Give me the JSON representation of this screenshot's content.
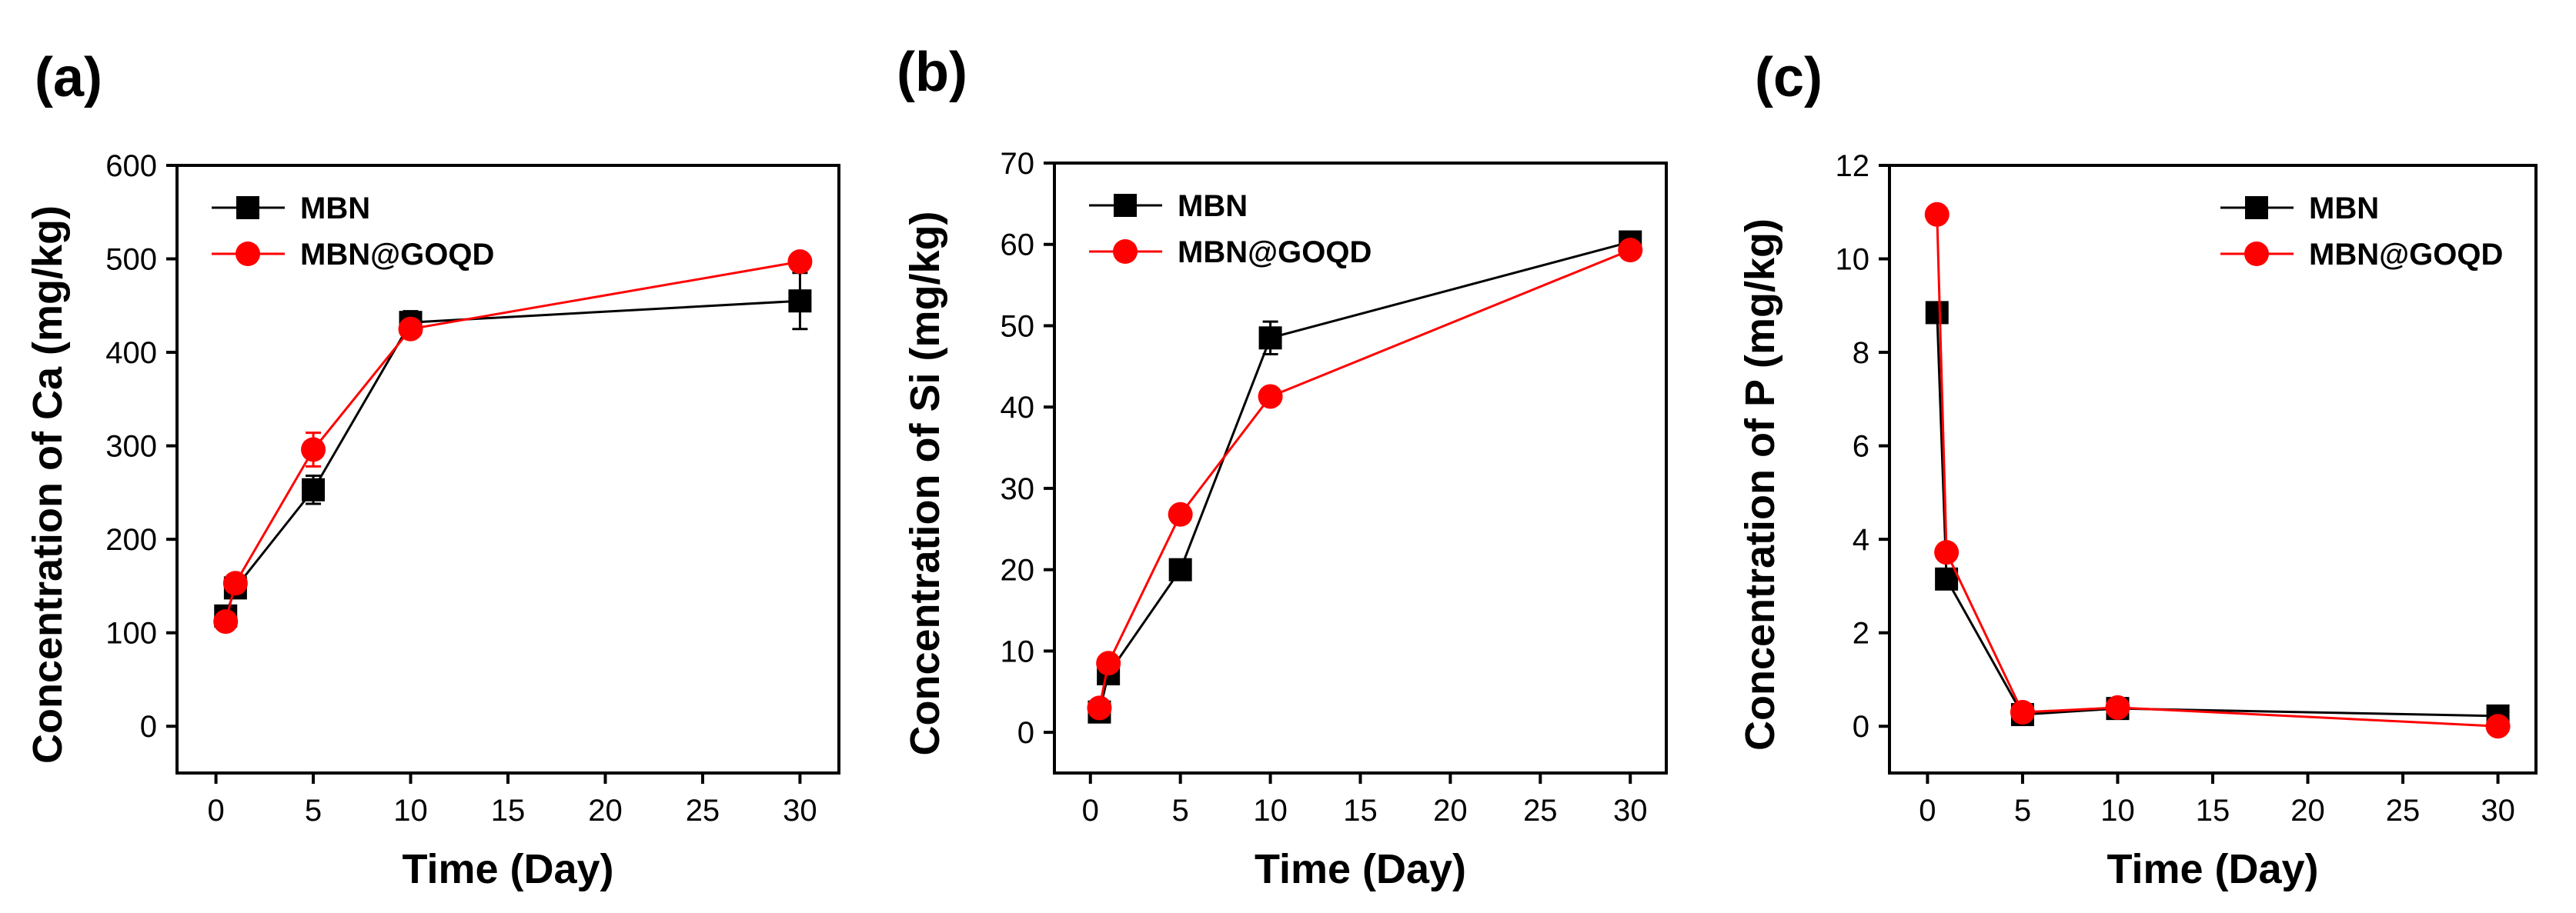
{
  "figure": {
    "colors": {
      "MBN": "#000000",
      "MBN@GOQD": "#ff0000"
    }
  },
  "chart_data": [
    {
      "type": "line",
      "panel": "(a)",
      "xlabel": "Time (Day)",
      "ylabel": "Concentration of Ca (mg/kg)",
      "xlim": [
        -2,
        32
      ],
      "ylim": [
        -50,
        600
      ],
      "xticks": [
        0,
        5,
        10,
        15,
        20,
        25,
        30
      ],
      "yticks": [
        0,
        100,
        200,
        300,
        400,
        500,
        600
      ],
      "legend_position": "top-left",
      "x": [
        0.5,
        1,
        5,
        10,
        30
      ],
      "series": [
        {
          "name": "MBN",
          "marker": "square",
          "color": "#000000",
          "values": [
            118,
            148,
            253,
            432,
            455
          ],
          "errors": [
            8,
            8,
            15,
            12,
            30
          ]
        },
        {
          "name": "MBN@GOQD",
          "marker": "circle",
          "color": "#ff0000",
          "values": [
            112,
            153,
            296,
            425,
            497
          ],
          "errors": [
            6,
            8,
            18,
            8,
            8
          ]
        }
      ]
    },
    {
      "type": "line",
      "panel": "(b)",
      "xlabel": "Time (Day)",
      "ylabel": "Concentration of Si (mg/kg)",
      "xlim": [
        -2,
        32
      ],
      "ylim": [
        -5,
        70
      ],
      "xticks": [
        0,
        5,
        10,
        15,
        20,
        25,
        30
      ],
      "yticks": [
        0,
        10,
        20,
        30,
        40,
        50,
        60,
        70
      ],
      "legend_position": "top-left",
      "x": [
        0.5,
        1,
        5,
        10,
        30
      ],
      "series": [
        {
          "name": "MBN",
          "marker": "square",
          "color": "#000000",
          "values": [
            2.5,
            7.2,
            20.0,
            48.5,
            60.3
          ],
          "errors": [
            0.5,
            0.8,
            0.8,
            2.0,
            0.8
          ]
        },
        {
          "name": "MBN@GOQD",
          "marker": "circle",
          "color": "#ff0000",
          "values": [
            3.0,
            8.5,
            26.8,
            41.3,
            59.3
          ],
          "errors": [
            0.4,
            0.6,
            0.8,
            0.8,
            0.6
          ]
        }
      ]
    },
    {
      "type": "line",
      "panel": "(c)",
      "xlabel": "Time (Day)",
      "ylabel": "Concentration of P (mg/kg)",
      "xlim": [
        -2,
        32
      ],
      "ylim": [
        -1,
        12
      ],
      "xticks": [
        0,
        5,
        10,
        15,
        20,
        25,
        30
      ],
      "yticks": [
        0,
        2,
        4,
        6,
        8,
        10,
        12
      ],
      "legend_position": "top-right",
      "x": [
        0.5,
        1,
        5,
        10,
        30
      ],
      "series": [
        {
          "name": "MBN",
          "marker": "square",
          "color": "#000000",
          "values": [
            8.85,
            3.15,
            0.25,
            0.38,
            0.22
          ],
          "errors": [
            0.1,
            0.1,
            0.05,
            0.05,
            0.05
          ]
        },
        {
          "name": "MBN@GOQD",
          "marker": "circle",
          "color": "#ff0000",
          "values": [
            10.95,
            3.72,
            0.3,
            0.4,
            0.0
          ],
          "errors": [
            0.1,
            0.1,
            0.05,
            0.05,
            0.05
          ]
        }
      ]
    }
  ]
}
